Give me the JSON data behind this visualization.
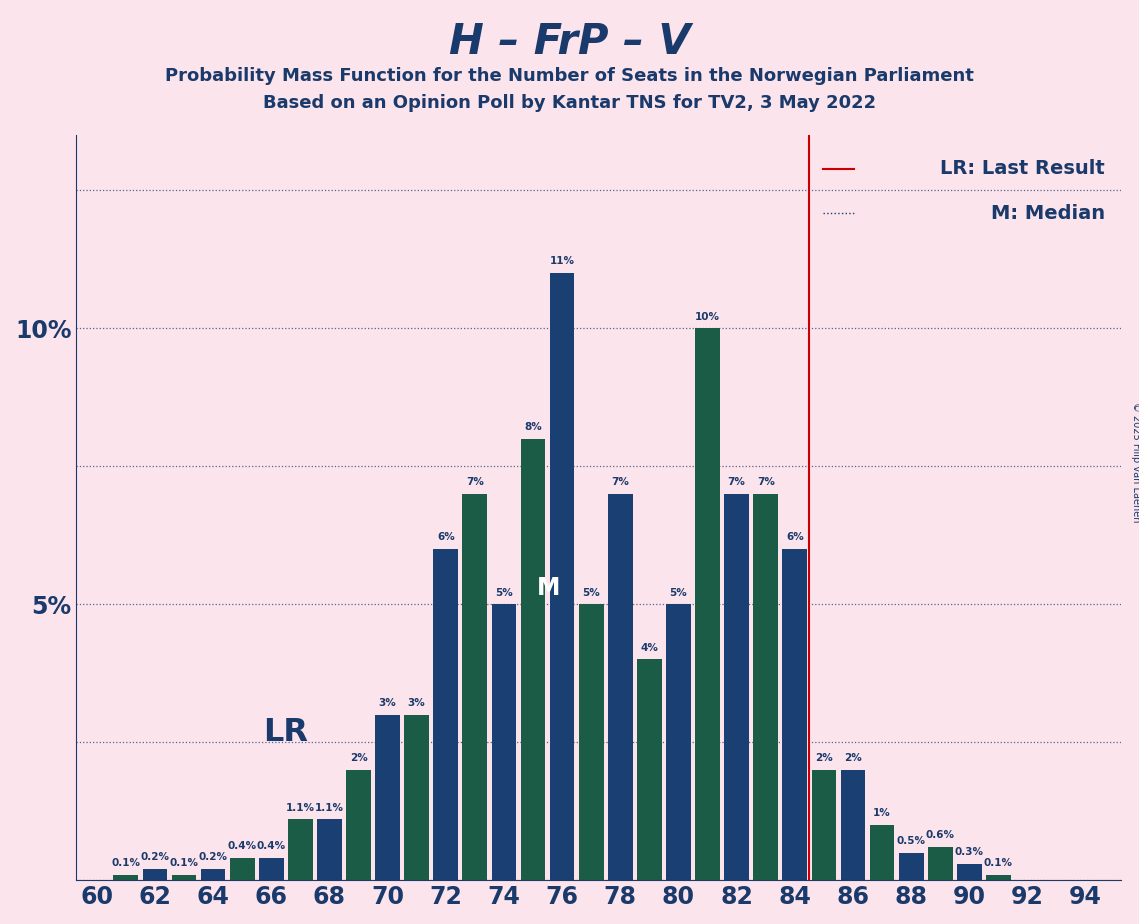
{
  "title": "H – FrP – V",
  "subtitle1": "Probability Mass Function for the Number of Seats in the Norwegian Parliament",
  "subtitle2": "Based on an Opinion Poll by Kantar TNS for TV2, 3 May 2022",
  "copyright": "© 2025 Filip van Laenen",
  "bar_seats": [
    60,
    61,
    62,
    63,
    64,
    65,
    66,
    67,
    68,
    69,
    70,
    71,
    72,
    73,
    74,
    75,
    76,
    77,
    78,
    79,
    80,
    81,
    82,
    83,
    84,
    85,
    86,
    87,
    88,
    89,
    90,
    91,
    92,
    93,
    94
  ],
  "bar_probs": [
    0.0,
    0.1,
    0.2,
    0.1,
    0.2,
    0.4,
    0.4,
    1.1,
    1.1,
    2.0,
    3.0,
    3.0,
    6.0,
    7.0,
    5.0,
    8.0,
    11.0,
    5.0,
    7.0,
    4.0,
    5.0,
    10.0,
    7.0,
    7.0,
    6.0,
    2.0,
    2.0,
    1.0,
    0.5,
    0.6,
    0.3,
    0.1,
    0.0,
    0.0,
    0.0
  ],
  "bar_color_blue": "#1a3f72",
  "bar_color_green": "#1a5c45",
  "last_result_seat": 84,
  "median_seat": 76,
  "lr_line_color": "#cc0000",
  "bg_color": "#fce4ec",
  "text_color": "#1a3a6b",
  "legend_lr": "LR: Last Result",
  "legend_m": "M: Median",
  "lr_label": "LR",
  "ytick_vals": [
    0,
    2.5,
    5.0,
    7.5,
    10.0,
    12.5
  ],
  "ytick_labels": [
    "",
    "",
    "5%",
    "",
    "10%",
    ""
  ],
  "ylim_max": 13.5
}
